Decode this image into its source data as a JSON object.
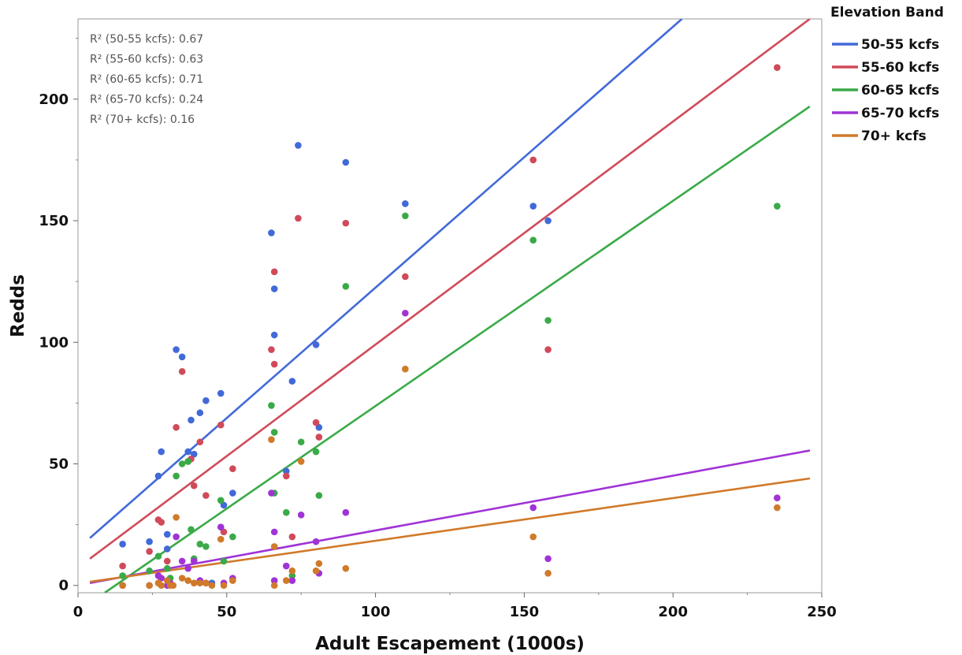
{
  "chart_data": {
    "type": "scatter",
    "xlabel": "Adult Escapement (1000s)",
    "ylabel": "Redds",
    "xlim": [
      0,
      250
    ],
    "ylim": [
      -3,
      233
    ],
    "x_ticks": [
      0,
      50,
      100,
      150,
      200,
      250
    ],
    "y_ticks": [
      0,
      50,
      100,
      150,
      200
    ],
    "grid": false,
    "legend_title": "Elevation Band",
    "legend_position": "right",
    "annotations": [
      "R² (50-55 kcfs): 0.67",
      "R² (55-60 kcfs): 0.63",
      "R² (60-65 kcfs): 0.71",
      "R² (65-70 kcfs): 0.24",
      "R² (70+ kcfs): 0.16"
    ],
    "series": [
      {
        "name": "50-55 kcfs",
        "color": "#4169d8",
        "line": {
          "x": [
            4,
            203
          ],
          "y": [
            19.5,
            233
          ]
        },
        "points": [
          [
            15,
            17
          ],
          [
            24,
            18
          ],
          [
            27,
            45
          ],
          [
            28,
            55
          ],
          [
            30,
            21
          ],
          [
            30,
            15
          ],
          [
            31,
            3
          ],
          [
            33,
            97
          ],
          [
            35,
            94
          ],
          [
            37,
            55
          ],
          [
            38,
            68
          ],
          [
            39,
            54
          ],
          [
            41,
            71
          ],
          [
            43,
            76
          ],
          [
            45,
            1
          ],
          [
            48,
            79
          ],
          [
            49,
            33
          ],
          [
            52,
            38
          ],
          [
            65,
            145
          ],
          [
            66,
            103
          ],
          [
            66,
            122
          ],
          [
            70,
            47
          ],
          [
            72,
            84
          ],
          [
            74,
            181
          ],
          [
            80,
            99
          ],
          [
            81,
            65
          ],
          [
            90,
            174
          ],
          [
            110,
            157
          ],
          [
            153,
            156
          ],
          [
            158,
            150
          ]
        ]
      },
      {
        "name": "55-60 kcfs",
        "color": "#d04a5a",
        "line": {
          "x": [
            4,
            246
          ],
          "y": [
            11,
            233
          ]
        },
        "points": [
          [
            15,
            8
          ],
          [
            24,
            14
          ],
          [
            27,
            27
          ],
          [
            28,
            26
          ],
          [
            30,
            10
          ],
          [
            33,
            65
          ],
          [
            35,
            88
          ],
          [
            37,
            51
          ],
          [
            38,
            52
          ],
          [
            39,
            41
          ],
          [
            41,
            59
          ],
          [
            43,
            37
          ],
          [
            48,
            66
          ],
          [
            49,
            22
          ],
          [
            52,
            48
          ],
          [
            65,
            97
          ],
          [
            66,
            91
          ],
          [
            66,
            129
          ],
          [
            70,
            45
          ],
          [
            72,
            20
          ],
          [
            74,
            151
          ],
          [
            80,
            67
          ],
          [
            81,
            61
          ],
          [
            90,
            149
          ],
          [
            110,
            127
          ],
          [
            153,
            175
          ],
          [
            158,
            97
          ],
          [
            235,
            213
          ]
        ]
      },
      {
        "name": "60-65 kcfs",
        "color": "#3aaa48",
        "line": {
          "x": [
            9,
            246
          ],
          "y": [
            -3,
            197
          ]
        },
        "points": [
          [
            15,
            4
          ],
          [
            24,
            6
          ],
          [
            27,
            12
          ],
          [
            30,
            7
          ],
          [
            31,
            3
          ],
          [
            33,
            45
          ],
          [
            35,
            50
          ],
          [
            37,
            51
          ],
          [
            38,
            23
          ],
          [
            39,
            11
          ],
          [
            41,
            17
          ],
          [
            43,
            16
          ],
          [
            48,
            35
          ],
          [
            49,
            10
          ],
          [
            52,
            20
          ],
          [
            65,
            74
          ],
          [
            66,
            63
          ],
          [
            66,
            38
          ],
          [
            70,
            30
          ],
          [
            72,
            4
          ],
          [
            75,
            59
          ],
          [
            80,
            55
          ],
          [
            81,
            37
          ],
          [
            90,
            123
          ],
          [
            110,
            152
          ],
          [
            153,
            142
          ],
          [
            158,
            109
          ],
          [
            235,
            156
          ]
        ]
      },
      {
        "name": "65-70 kcfs",
        "color": "#a033d6",
        "line": {
          "x": [
            4,
            246
          ],
          "y": [
            1,
            55.5
          ]
        },
        "points": [
          [
            15,
            0
          ],
          [
            24,
            0
          ],
          [
            27,
            4
          ],
          [
            28,
            3
          ],
          [
            30,
            0
          ],
          [
            31,
            1
          ],
          [
            33,
            20
          ],
          [
            35,
            10
          ],
          [
            37,
            7
          ],
          [
            39,
            10
          ],
          [
            41,
            2
          ],
          [
            43,
            1
          ],
          [
            48,
            24
          ],
          [
            49,
            1
          ],
          [
            52,
            3
          ],
          [
            65,
            38
          ],
          [
            66,
            22
          ],
          [
            66,
            2
          ],
          [
            70,
            8
          ],
          [
            72,
            2
          ],
          [
            75,
            29
          ],
          [
            80,
            18
          ],
          [
            81,
            5
          ],
          [
            90,
            30
          ],
          [
            110,
            112
          ],
          [
            153,
            32
          ],
          [
            158,
            11
          ],
          [
            235,
            36
          ]
        ]
      },
      {
        "name": "70+ kcfs",
        "color": "#d07a2a",
        "line": {
          "x": [
            4,
            246
          ],
          "y": [
            1.5,
            44
          ]
        },
        "points": [
          [
            15,
            0
          ],
          [
            24,
            0
          ],
          [
            27,
            1
          ],
          [
            28,
            0
          ],
          [
            30,
            2
          ],
          [
            31,
            0
          ],
          [
            32,
            0
          ],
          [
            33,
            28
          ],
          [
            35,
            3
          ],
          [
            37,
            2
          ],
          [
            39,
            1
          ],
          [
            41,
            1
          ],
          [
            43,
            1
          ],
          [
            45,
            0
          ],
          [
            48,
            19
          ],
          [
            49,
            0
          ],
          [
            52,
            2
          ],
          [
            65,
            60
          ],
          [
            66,
            16
          ],
          [
            66,
            0
          ],
          [
            70,
            2
          ],
          [
            72,
            6
          ],
          [
            75,
            51
          ],
          [
            80,
            6
          ],
          [
            81,
            9
          ],
          [
            90,
            7
          ],
          [
            110,
            89
          ],
          [
            153,
            20
          ],
          [
            158,
            5
          ],
          [
            235,
            32
          ]
        ]
      }
    ]
  }
}
